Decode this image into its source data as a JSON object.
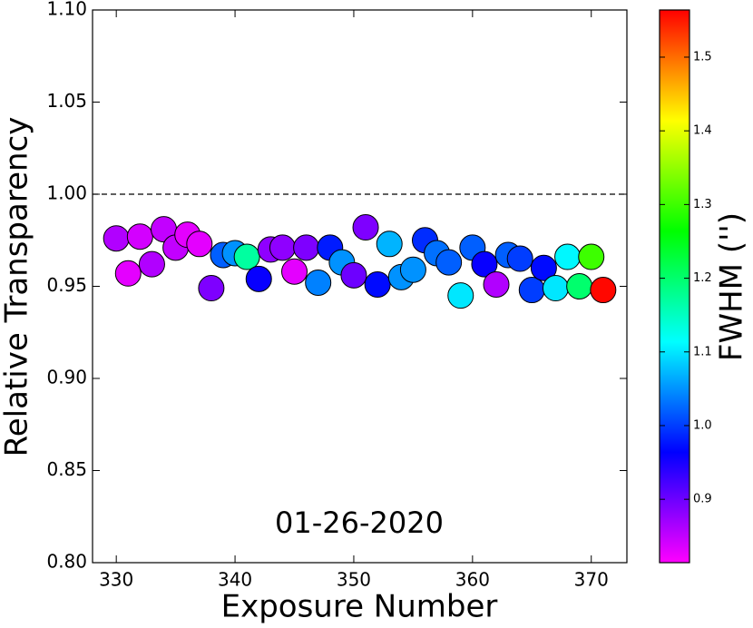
{
  "chart_data": {
    "type": "scatter",
    "x_label": "Exposure Number",
    "y_label": "Relative Transparency",
    "annotation": "01-26-2020",
    "colorbar_label": "FWHM ('')",
    "colormap": "hsv",
    "x": [
      330,
      331,
      332,
      333,
      334,
      335,
      336,
      337,
      338,
      339,
      340,
      341,
      342,
      343,
      344,
      345,
      346,
      347,
      348,
      349,
      350,
      351,
      352,
      353,
      354,
      355,
      356,
      357,
      358,
      359,
      360,
      361,
      362,
      363,
      364,
      365,
      366,
      367,
      368,
      369,
      370,
      371
    ],
    "values": [
      0.976,
      0.957,
      0.977,
      0.962,
      0.981,
      0.971,
      0.978,
      0.973,
      0.949,
      0.967,
      0.968,
      0.966,
      0.954,
      0.97,
      0.971,
      0.958,
      0.971,
      0.952,
      0.971,
      0.963,
      0.956,
      0.982,
      0.951,
      0.973,
      0.955,
      0.959,
      0.975,
      0.968,
      0.963,
      0.945,
      0.971,
      0.962,
      0.951,
      0.967,
      0.965,
      0.948,
      0.96,
      0.949,
      0.966,
      0.95,
      0.966,
      0.948
    ],
    "color_values": [
      0.86,
      0.83,
      0.84,
      0.86,
      0.85,
      0.85,
      0.83,
      0.83,
      0.89,
      1.02,
      1.05,
      1.17,
      0.96,
      0.88,
      0.88,
      0.83,
      0.89,
      1.04,
      0.98,
      1.05,
      0.9,
      0.89,
      0.97,
      1.07,
      1.05,
      1.05,
      0.99,
      1.03,
      1.02,
      1.1,
      1.02,
      0.96,
      0.86,
      1.02,
      1.0,
      1.0,
      0.97,
      1.1,
      1.11,
      1.2,
      1.3,
      1.56
    ],
    "xlim": [
      328,
      373
    ],
    "xticks": [
      330,
      340,
      350,
      360,
      370
    ],
    "ylim": [
      0.8,
      1.1
    ],
    "yticks": [
      {
        "value": 0.8,
        "label": "0.80"
      },
      {
        "value": 0.85,
        "label": "0.85"
      },
      {
        "value": 0.9,
        "label": "0.90"
      },
      {
        "value": 0.95,
        "label": "0.95"
      },
      {
        "value": 1,
        "label": "1.00"
      },
      {
        "value": 1.05,
        "label": "1.05"
      },
      {
        "value": 1.1,
        "label": "1.10"
      }
    ],
    "hline": 1,
    "clim": [
      0.814,
      1.564
    ],
    "cticks": [
      0.9,
      {
        "value": 1,
        "label": "1.0"
      },
      1.1,
      1.2,
      1.3,
      1.4,
      1.5
    ]
  }
}
